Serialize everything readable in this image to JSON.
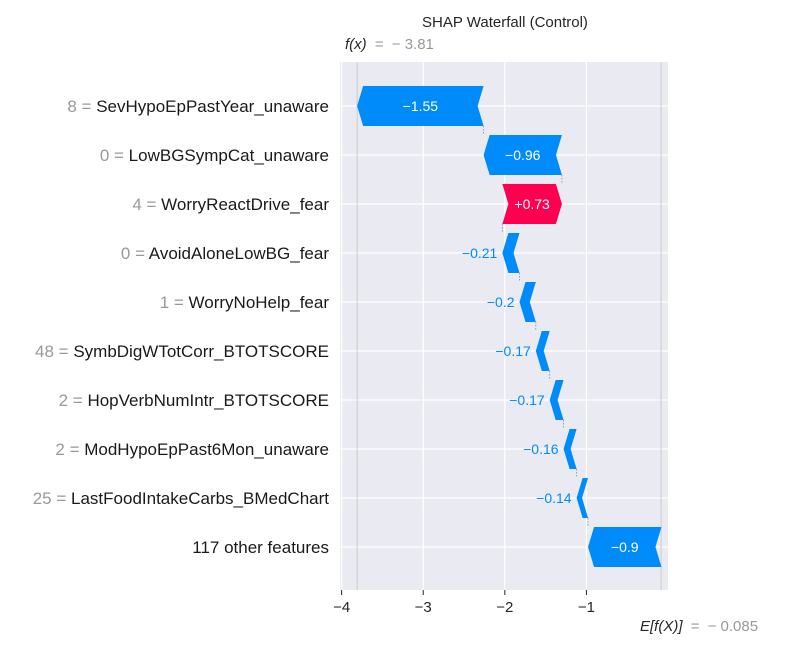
{
  "chart_data": {
    "type": "waterfall",
    "title": "SHAP Waterfall (Control)",
    "fx_label": "f(x)",
    "fx_value": "− 3.81",
    "fx_number": -3.81,
    "ex_label": "E[f(X)]",
    "ex_value": "− 0.085",
    "ex_number": -0.085,
    "xlim": [
      -4.02,
      0.0
    ],
    "xticks": [
      -4,
      -3,
      -2,
      -1
    ],
    "xtick_labels": [
      "−4",
      "−3",
      "−2",
      "−1"
    ],
    "grid": true,
    "features": [
      {
        "value": "8",
        "name": "SevHypoEpPastYear_unaware",
        "shap": -1.55,
        "shap_label": "−1.55"
      },
      {
        "value": "0",
        "name": "LowBGSympCat_unaware",
        "shap": -0.96,
        "shap_label": "−0.96"
      },
      {
        "value": "4",
        "name": "WorryReactDrive_fear",
        "shap": 0.73,
        "shap_label": "+0.73"
      },
      {
        "value": "0",
        "name": "AvoidAloneLowBG_fear",
        "shap": -0.21,
        "shap_label": "−0.21"
      },
      {
        "value": "1",
        "name": "WorryNoHelp_fear",
        "shap": -0.2,
        "shap_label": "−0.2"
      },
      {
        "value": "48",
        "name": "SymbDigWTotCorr_BTOTSCORE",
        "shap": -0.17,
        "shap_label": "−0.17"
      },
      {
        "value": "2",
        "name": "HopVerbNumIntr_BTOTSCORE",
        "shap": -0.17,
        "shap_label": "−0.17"
      },
      {
        "value": "2",
        "name": "ModHypoEpPast6Mon_unaware",
        "shap": -0.16,
        "shap_label": "−0.16"
      },
      {
        "value": "25",
        "name": "LastFoodIntakeCarbs_BMedChart",
        "shap": -0.14,
        "shap_label": "−0.14"
      },
      {
        "value": "",
        "name": "117 other features",
        "shap": -0.9,
        "shap_label": "−0.9"
      }
    ]
  },
  "colors": {
    "negative": "#008bfb",
    "positive": "#ff0051",
    "plot_bg": "#eaeaf2",
    "grid": "#ffffff",
    "muted_text": "#999999"
  }
}
